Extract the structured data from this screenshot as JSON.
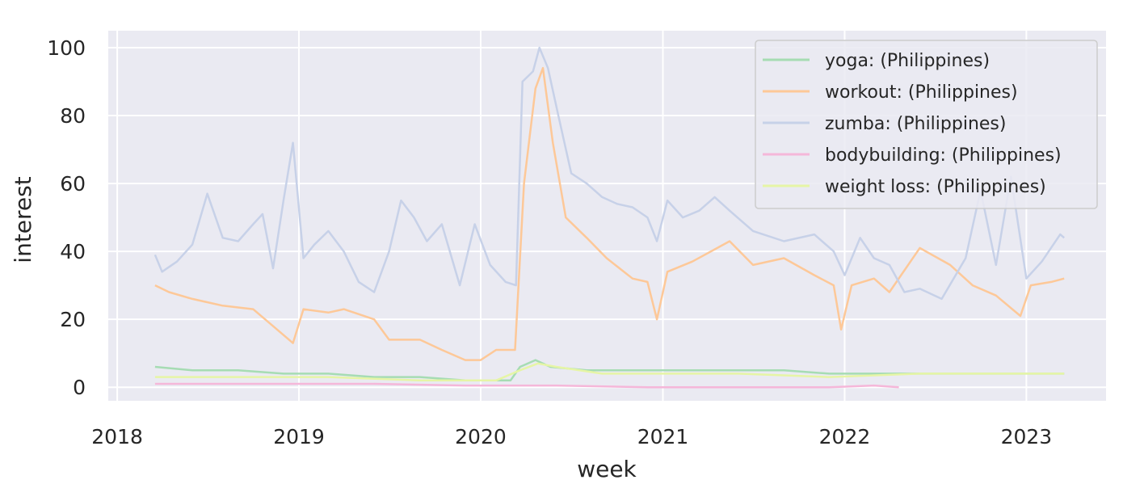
{
  "chart_data": {
    "type": "line",
    "title": "",
    "xlabel": "week",
    "ylabel": "interest",
    "xlim": [
      "2017-12-14",
      "2023-06-10"
    ],
    "ylim": [
      -4,
      105
    ],
    "x_ticks": [
      "2018",
      "2019",
      "2020",
      "2021",
      "2022",
      "2023"
    ],
    "y_ticks": [
      0,
      20,
      40,
      60,
      80,
      100
    ],
    "grid": true,
    "legend": "top-right",
    "series": [
      {
        "name": "yoga: (Philippines)",
        "color": "#a6dcb3",
        "points": [
          [
            "2018-03-18",
            6
          ],
          [
            "2018-06-01",
            5
          ],
          [
            "2018-09-01",
            5
          ],
          [
            "2018-12-01",
            4
          ],
          [
            "2019-03-01",
            4
          ],
          [
            "2019-06-01",
            3
          ],
          [
            "2019-09-01",
            3
          ],
          [
            "2019-12-01",
            2
          ],
          [
            "2020-03-01",
            2
          ],
          [
            "2020-03-20",
            6
          ],
          [
            "2020-04-20",
            8
          ],
          [
            "2020-05-20",
            6
          ],
          [
            "2020-08-01",
            5
          ],
          [
            "2020-12-01",
            5
          ],
          [
            "2021-03-01",
            5
          ],
          [
            "2021-06-01",
            5
          ],
          [
            "2021-09-01",
            5
          ],
          [
            "2021-12-01",
            4
          ],
          [
            "2022-03-01",
            4
          ],
          [
            "2022-06-01",
            4
          ],
          [
            "2022-09-01",
            4
          ],
          [
            "2022-12-01",
            4
          ],
          [
            "2023-03-18",
            4
          ]
        ]
      },
      {
        "name": "workout: (Philippines)",
        "color": "#fdc898",
        "points": [
          [
            "2018-03-18",
            30
          ],
          [
            "2018-04-15",
            28
          ],
          [
            "2018-06-01",
            26
          ],
          [
            "2018-08-01",
            24
          ],
          [
            "2018-10-01",
            23
          ],
          [
            "2018-11-10",
            18
          ],
          [
            "2018-12-20",
            13
          ],
          [
            "2019-01-10",
            23
          ],
          [
            "2019-03-01",
            22
          ],
          [
            "2019-04-01",
            23
          ],
          [
            "2019-06-01",
            20
          ],
          [
            "2019-07-01",
            14
          ],
          [
            "2019-09-01",
            14
          ],
          [
            "2019-10-15",
            11
          ],
          [
            "2019-12-01",
            8
          ],
          [
            "2020-01-01",
            8
          ],
          [
            "2020-02-01",
            11
          ],
          [
            "2020-03-10",
            11
          ],
          [
            "2020-03-28",
            60
          ],
          [
            "2020-04-20",
            88
          ],
          [
            "2020-05-05",
            94
          ],
          [
            "2020-05-25",
            72
          ],
          [
            "2020-06-20",
            50
          ],
          [
            "2020-08-01",
            44
          ],
          [
            "2020-09-10",
            38
          ],
          [
            "2020-11-01",
            32
          ],
          [
            "2020-12-01",
            31
          ],
          [
            "2020-12-20",
            20
          ],
          [
            "2021-01-10",
            34
          ],
          [
            "2021-03-01",
            37
          ],
          [
            "2021-05-15",
            43
          ],
          [
            "2021-07-01",
            36
          ],
          [
            "2021-09-01",
            38
          ],
          [
            "2021-11-01",
            33
          ],
          [
            "2021-12-10",
            30
          ],
          [
            "2021-12-25",
            17
          ],
          [
            "2022-01-15",
            30
          ],
          [
            "2022-03-01",
            32
          ],
          [
            "2022-04-01",
            28
          ],
          [
            "2022-06-01",
            41
          ],
          [
            "2022-08-01",
            36
          ],
          [
            "2022-09-15",
            30
          ],
          [
            "2022-11-01",
            27
          ],
          [
            "2022-12-20",
            21
          ],
          [
            "2023-01-10",
            30
          ],
          [
            "2023-02-20",
            31
          ],
          [
            "2023-03-18",
            32
          ]
        ]
      },
      {
        "name": "zumba: (Philippines)",
        "color": "#c7d1e8",
        "points": [
          [
            "2018-03-18",
            39
          ],
          [
            "2018-04-01",
            34
          ],
          [
            "2018-05-01",
            37
          ],
          [
            "2018-06-01",
            42
          ],
          [
            "2018-07-01",
            57
          ],
          [
            "2018-08-01",
            44
          ],
          [
            "2018-09-01",
            43
          ],
          [
            "2018-10-01",
            48
          ],
          [
            "2018-10-20",
            51
          ],
          [
            "2018-11-10",
            35
          ],
          [
            "2018-12-01",
            55
          ],
          [
            "2018-12-20",
            72
          ],
          [
            "2019-01-10",
            38
          ],
          [
            "2019-02-01",
            42
          ],
          [
            "2019-03-01",
            46
          ],
          [
            "2019-04-01",
            40
          ],
          [
            "2019-05-01",
            31
          ],
          [
            "2019-06-01",
            28
          ],
          [
            "2019-07-01",
            40
          ],
          [
            "2019-07-25",
            55
          ],
          [
            "2019-08-20",
            50
          ],
          [
            "2019-09-15",
            43
          ],
          [
            "2019-10-15",
            48
          ],
          [
            "2019-11-20",
            30
          ],
          [
            "2019-12-20",
            48
          ],
          [
            "2020-01-20",
            36
          ],
          [
            "2020-02-20",
            31
          ],
          [
            "2020-03-12",
            30
          ],
          [
            "2020-03-25",
            90
          ],
          [
            "2020-04-15",
            93
          ],
          [
            "2020-04-28",
            100
          ],
          [
            "2020-05-15",
            94
          ],
          [
            "2020-06-05",
            80
          ],
          [
            "2020-07-01",
            63
          ],
          [
            "2020-08-01",
            60
          ],
          [
            "2020-09-01",
            56
          ],
          [
            "2020-10-01",
            54
          ],
          [
            "2020-11-01",
            53
          ],
          [
            "2020-12-01",
            50
          ],
          [
            "2020-12-20",
            43
          ],
          [
            "2021-01-10",
            55
          ],
          [
            "2021-02-10",
            50
          ],
          [
            "2021-03-15",
            52
          ],
          [
            "2021-04-15",
            56
          ],
          [
            "2021-05-15",
            52
          ],
          [
            "2021-07-01",
            46
          ],
          [
            "2021-09-01",
            43
          ],
          [
            "2021-11-01",
            45
          ],
          [
            "2021-12-10",
            40
          ],
          [
            "2022-01-01",
            33
          ],
          [
            "2022-02-01",
            44
          ],
          [
            "2022-03-01",
            38
          ],
          [
            "2022-04-01",
            36
          ],
          [
            "2022-05-01",
            28
          ],
          [
            "2022-06-01",
            29
          ],
          [
            "2022-07-15",
            26
          ],
          [
            "2022-09-01",
            38
          ],
          [
            "2022-10-01",
            58
          ],
          [
            "2022-11-01",
            36
          ],
          [
            "2022-12-01",
            62
          ],
          [
            "2023-01-01",
            32
          ],
          [
            "2023-02-01",
            37
          ],
          [
            "2023-03-10",
            45
          ],
          [
            "2023-03-18",
            44
          ]
        ]
      },
      {
        "name": "bodybuilding: (Philippines)",
        "color": "#f5b7d9",
        "points": [
          [
            "2018-03-18",
            1
          ],
          [
            "2018-12-01",
            1
          ],
          [
            "2019-06-01",
            1
          ],
          [
            "2019-12-01",
            0.5
          ],
          [
            "2020-03-01",
            0.5
          ],
          [
            "2020-06-01",
            0.5
          ],
          [
            "2020-12-01",
            0
          ],
          [
            "2021-06-01",
            0
          ],
          [
            "2021-12-01",
            0
          ],
          [
            "2022-03-01",
            0.5
          ],
          [
            "2022-04-20",
            0
          ]
        ]
      },
      {
        "name": "weight loss: (Philippines)",
        "color": "#e6f5a6",
        "points": [
          [
            "2018-03-18",
            3
          ],
          [
            "2018-09-01",
            3
          ],
          [
            "2019-03-01",
            3
          ],
          [
            "2019-09-01",
            2
          ],
          [
            "2020-02-01",
            2
          ],
          [
            "2020-03-20",
            5
          ],
          [
            "2020-04-25",
            7
          ],
          [
            "2020-06-01",
            6
          ],
          [
            "2020-09-01",
            4
          ],
          [
            "2021-01-01",
            4
          ],
          [
            "2021-06-01",
            4
          ],
          [
            "2021-12-01",
            3
          ],
          [
            "2022-06-01",
            4
          ],
          [
            "2022-12-01",
            4
          ],
          [
            "2023-03-18",
            4
          ]
        ]
      }
    ]
  }
}
